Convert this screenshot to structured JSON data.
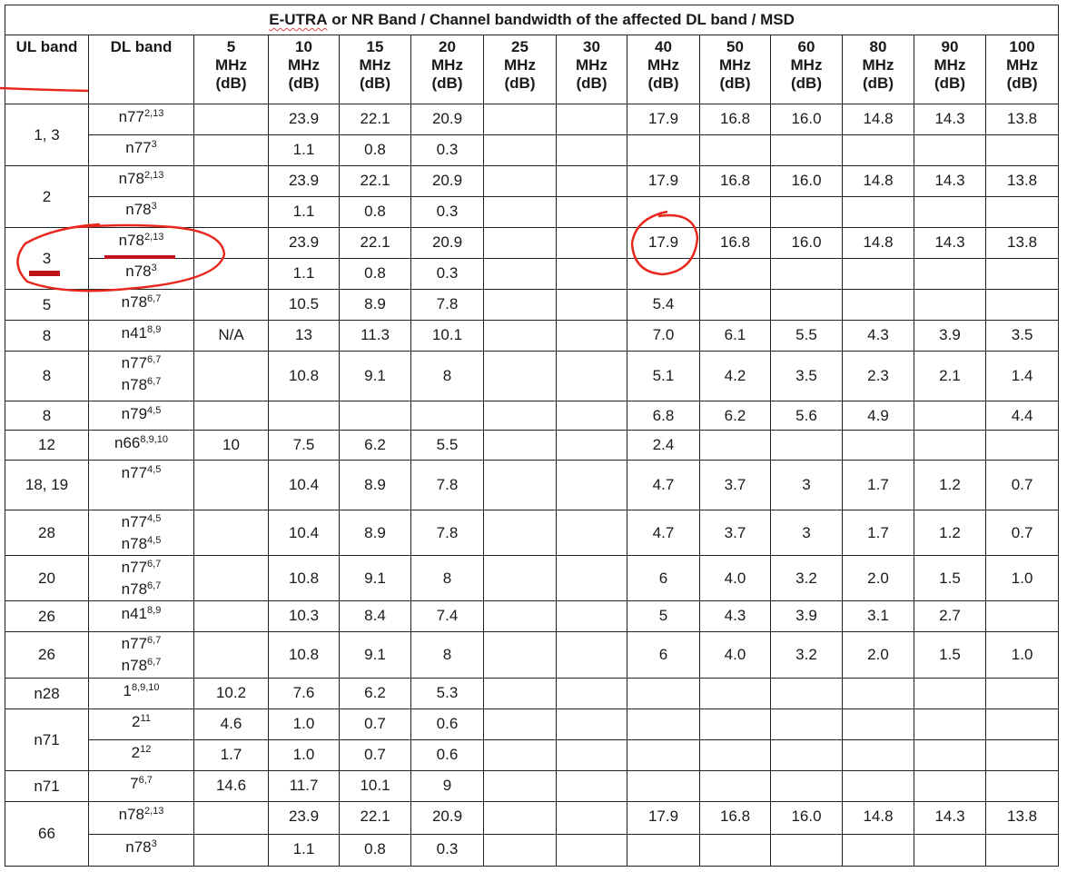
{
  "table": {
    "title_prefix": "E-UTRA",
    "title_rest": " or NR Band / Channel bandwidth of the affected DL band / MSD",
    "headers": [
      "UL band",
      "DL band",
      "5 MHz (dB)",
      "10 MHz (dB)",
      "15 MHz (dB)",
      "20 MHz (dB)",
      "25 MHz (dB)",
      "30 MHz (dB)",
      "40 MHz (dB)",
      "50 MHz (dB)",
      "60 MHz (dB)",
      "80 MHz (dB)",
      "90 MHz (dB)",
      "100 MHz (dB)"
    ],
    "rows": [
      {
        "ul": "1, 3",
        "span": 2,
        "dl": [
          {
            "b": "n77",
            "s": "2,13"
          }
        ],
        "v": [
          "",
          "23.9",
          "22.1",
          "20.9",
          "",
          "",
          "17.9",
          "16.8",
          "16.0",
          "14.8",
          "14.3",
          "13.8"
        ]
      },
      {
        "dl": [
          {
            "b": "n77",
            "s": "3"
          }
        ],
        "v": [
          "",
          "1.1",
          "0.8",
          "0.3",
          "",
          "",
          "",
          "",
          "",
          "",
          "",
          ""
        ]
      },
      {
        "ul": "2",
        "span": 2,
        "dl": [
          {
            "b": "n78",
            "s": "2,13"
          }
        ],
        "v": [
          "",
          "23.9",
          "22.1",
          "20.9",
          "",
          "",
          "17.9",
          "16.8",
          "16.0",
          "14.8",
          "14.3",
          "13.8"
        ]
      },
      {
        "dl": [
          {
            "b": "n78",
            "s": "3"
          }
        ],
        "v": [
          "",
          "1.1",
          "0.8",
          "0.3",
          "",
          "",
          "",
          "",
          "",
          "",
          "",
          ""
        ]
      },
      {
        "ul": "3",
        "span": 2,
        "dl": [
          {
            "b": "n78",
            "s": "2,13"
          }
        ],
        "v": [
          "",
          "23.9",
          "22.1",
          "20.9",
          "",
          "",
          "17.9",
          "16.8",
          "16.0",
          "14.8",
          "14.3",
          "13.8"
        ]
      },
      {
        "dl": [
          {
            "b": "n78",
            "s": "3"
          }
        ],
        "v": [
          "",
          "1.1",
          "0.8",
          "0.3",
          "",
          "",
          "",
          "",
          "",
          "",
          "",
          ""
        ]
      },
      {
        "ul": "5",
        "span": 1,
        "dl": [
          {
            "b": "n78",
            "s": "6,7"
          }
        ],
        "v": [
          "",
          "10.5",
          "8.9",
          "7.8",
          "",
          "",
          "5.4",
          "",
          "",
          "",
          "",
          ""
        ]
      },
      {
        "ul": "8",
        "span": 1,
        "dl": [
          {
            "b": "n41",
            "s": "8,9"
          }
        ],
        "v": [
          "N/A",
          "13",
          "11.3",
          "10.1",
          "",
          "",
          "7.0",
          "6.1",
          "5.5",
          "4.3",
          "3.9",
          "3.5"
        ]
      },
      {
        "ul": "8",
        "span": 1,
        "dl": [
          {
            "b": "n77",
            "s": "6,7"
          },
          {
            "b": "n78",
            "s": "6,7"
          }
        ],
        "v": [
          "",
          "10.8",
          "9.1",
          "8",
          "",
          "",
          "5.1",
          "4.2",
          "3.5",
          "2.3",
          "2.1",
          "1.4"
        ]
      },
      {
        "ul": "8",
        "span": 1,
        "dl": [
          {
            "b": "n79",
            "s": "4,5"
          }
        ],
        "v": [
          "",
          "",
          "",
          "",
          "",
          "",
          "6.8",
          "6.2",
          "5.6",
          "4.9",
          "",
          "4.4"
        ]
      },
      {
        "ul": "12",
        "span": 1,
        "dl": [
          {
            "b": "n66",
            "s": "8,9,10"
          }
        ],
        "v": [
          "10",
          "7.5",
          "6.2",
          "5.5",
          "",
          "",
          "2.4",
          "",
          "",
          "",
          "",
          ""
        ]
      },
      {
        "ul": "18, 19",
        "span": 1,
        "dl": [
          {
            "b": "n77",
            "s": "4,5"
          }
        ],
        "v": [
          "",
          "10.4",
          "8.9",
          "7.8",
          "",
          "",
          "4.7",
          "3.7",
          "3",
          "1.7",
          "1.2",
          "0.7"
        ]
      },
      {
        "ul": "28",
        "span": 1,
        "dl": [
          {
            "b": "n77",
            "s": "4,5"
          },
          {
            "b": "n78",
            "s": "4,5"
          }
        ],
        "v": [
          "",
          "10.4",
          "8.9",
          "7.8",
          "",
          "",
          "4.7",
          "3.7",
          "3",
          "1.7",
          "1.2",
          "0.7"
        ]
      },
      {
        "ul": "20",
        "span": 1,
        "dl": [
          {
            "b": "n77",
            "s": "6,7"
          },
          {
            "b": "n78",
            "s": "6,7"
          }
        ],
        "v": [
          "",
          "10.8",
          "9.1",
          "8",
          "",
          "",
          "6",
          "4.0",
          "3.2",
          "2.0",
          "1.5",
          "1.0"
        ]
      },
      {
        "ul": "26",
        "span": 1,
        "dl": [
          {
            "b": "n41",
            "s": "8,9"
          }
        ],
        "v": [
          "",
          "10.3",
          "8.4",
          "7.4",
          "",
          "",
          "5",
          "4.3",
          "3.9",
          "3.1",
          "2.7",
          ""
        ]
      },
      {
        "ul": "26",
        "span": 1,
        "dl": [
          {
            "b": "n77",
            "s": "6,7"
          },
          {
            "b": "n78",
            "s": "6,7"
          }
        ],
        "v": [
          "",
          "10.8",
          "9.1",
          "8",
          "",
          "",
          "6",
          "4.0",
          "3.2",
          "2.0",
          "1.5",
          "1.0"
        ]
      },
      {
        "ul": "n28",
        "span": 1,
        "dl": [
          {
            "b": "1",
            "s": "8,9,10"
          }
        ],
        "v": [
          "10.2",
          "7.6",
          "6.2",
          "5.3",
          "",
          "",
          "",
          "",
          "",
          "",
          "",
          ""
        ]
      },
      {
        "ul": "n71",
        "span": 2,
        "dl": [
          {
            "b": "2",
            "s": "11"
          }
        ],
        "v": [
          "4.6",
          "1.0",
          "0.7",
          "0.6",
          "",
          "",
          "",
          "",
          "",
          "",
          "",
          ""
        ]
      },
      {
        "dl": [
          {
            "b": "2",
            "s": "12"
          }
        ],
        "v": [
          "1.7",
          "1.0",
          "0.7",
          "0.6",
          "",
          "",
          "",
          "",
          "",
          "",
          "",
          ""
        ]
      },
      {
        "ul": "n71",
        "span": 1,
        "dl": [
          {
            "b": "7",
            "s": "6,7"
          }
        ],
        "v": [
          "14.6",
          "11.7",
          "10.1",
          "9",
          "",
          "",
          "",
          "",
          "",
          "",
          "",
          ""
        ]
      },
      {
        "ul": "66",
        "span": 2,
        "dl": [
          {
            "b": "n78",
            "s": "2,13"
          }
        ],
        "v": [
          "",
          "23.9",
          "22.1",
          "20.9",
          "",
          "",
          "17.9",
          "16.8",
          "16.0",
          "14.8",
          "14.3",
          "13.8"
        ]
      },
      {
        "dl": [
          {
            "b": "n78",
            "s": "3"
          }
        ],
        "v": [
          "",
          "1.1",
          "0.8",
          "0.3",
          "",
          "",
          "",
          "",
          "",
          "",
          "",
          ""
        ]
      }
    ]
  },
  "annotation_color": "#e8281e"
}
